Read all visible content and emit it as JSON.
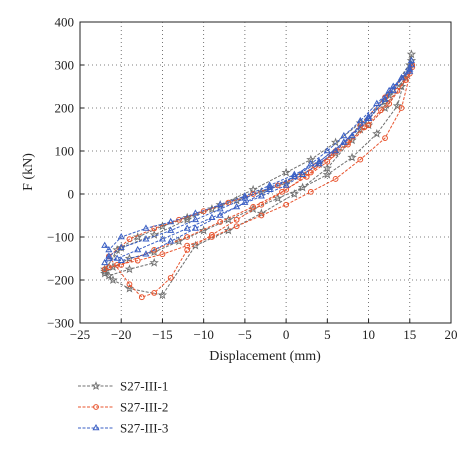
{
  "chart_data": {
    "type": "line",
    "title": "",
    "xlabel": "Displacement (mm)",
    "ylabel": "F (kN)",
    "xlim": [
      -25,
      20
    ],
    "ylim": [
      -300,
      400
    ],
    "xticks": [
      -25,
      -20,
      -15,
      -10,
      -5,
      0,
      5,
      10,
      15,
      20
    ],
    "yticks": [
      -300,
      -200,
      -100,
      0,
      100,
      200,
      300,
      400
    ],
    "grid": "dotted",
    "legend_position": "below plot, left",
    "series": [
      {
        "name": "S27-III-1",
        "color": "#707070",
        "marker": "star",
        "x": [
          -22,
          -21,
          -19,
          -16,
          -13,
          -10,
          -7,
          -4,
          -1,
          2,
          5,
          8,
          11,
          13.5,
          15.2,
          15,
          14,
          12,
          10,
          8,
          6,
          4,
          2,
          0,
          -3,
          -6,
          -9,
          -12,
          -15,
          -18,
          -20.5,
          -22,
          -21,
          -19,
          -15,
          -11,
          -7,
          -3,
          1,
          5,
          9,
          12.5,
          15.2,
          14.5,
          12,
          9,
          6,
          3,
          0,
          -4,
          -8,
          -12,
          -16,
          -20,
          -22,
          -21.5,
          -19,
          -16
        ],
        "y": [
          -185,
          -170,
          -150,
          -135,
          -110,
          -85,
          -60,
          -35,
          -10,
          15,
          45,
          85,
          140,
          205,
          325,
          300,
          250,
          200,
          160,
          125,
          95,
          70,
          45,
          25,
          5,
          -15,
          -35,
          -55,
          -75,
          -100,
          -130,
          -180,
          -200,
          -220,
          -235,
          -120,
          -85,
          -45,
          0,
          60,
          150,
          230,
          310,
          270,
          215,
          165,
          120,
          80,
          50,
          10,
          -25,
          -60,
          -95,
          -125,
          -175,
          -190,
          -175,
          -160
        ]
      },
      {
        "name": "S27-III-2",
        "color": "#e8542e",
        "marker": "circle",
        "x": [
          -22,
          -20.5,
          -18,
          -15,
          -12,
          -9,
          -6,
          -3,
          0,
          3,
          6,
          9,
          12,
          14,
          15.3,
          15,
          13.5,
          11.5,
          9.5,
          7.5,
          5.5,
          3.5,
          1.5,
          -1,
          -4,
          -7,
          -10,
          -13,
          -16,
          -19,
          -21.5,
          -19,
          -17.5,
          -16,
          -14,
          -12,
          -9,
          -6,
          -3,
          0,
          3,
          6,
          9,
          12,
          15.3,
          14.5,
          12.5,
          10,
          7.5,
          5,
          2.5,
          -0.5,
          -4,
          -8,
          -12,
          -16,
          -20,
          -21.5
        ],
        "y": [
          -175,
          -165,
          -155,
          -140,
          -120,
          -100,
          -75,
          -50,
          -25,
          5,
          35,
          80,
          130,
          200,
          300,
          280,
          240,
          195,
          155,
          120,
          90,
          65,
          40,
          20,
          0,
          -20,
          -40,
          -60,
          -80,
          -105,
          -145,
          -210,
          -240,
          -230,
          -195,
          -130,
          -95,
          -60,
          -25,
          10,
          50,
          100,
          160,
          225,
          295,
          265,
          210,
          160,
          115,
          75,
          40,
          5,
          -30,
          -65,
          -100,
          -130,
          -165,
          -170
        ]
      },
      {
        "name": "S27-III-3",
        "color": "#3a5fc4",
        "marker": "triangle",
        "x": [
          -22,
          -21.5,
          -20,
          -17,
          -14,
          -11,
          -8,
          -5,
          -2,
          1,
          4,
          7,
          10,
          12.5,
          15,
          15.2,
          14,
          12,
          10,
          8,
          6,
          4,
          2,
          0,
          -3,
          -6,
          -9,
          -12,
          -15,
          -18,
          -20.5,
          -22,
          -21.5,
          -20,
          -17,
          -14,
          -11,
          -8,
          -5,
          -2,
          1,
          4,
          7,
          10,
          13,
          15.2,
          15,
          13,
          11,
          9,
          7,
          5,
          3,
          1,
          -2,
          -5,
          -8,
          -11,
          -14,
          -17,
          -20,
          -21.5
        ],
        "y": [
          -120,
          -130,
          -100,
          -80,
          -65,
          -45,
          -25,
          -5,
          20,
          45,
          75,
          120,
          180,
          240,
          290,
          310,
          270,
          220,
          175,
          135,
          100,
          70,
          45,
          20,
          -5,
          -30,
          -55,
          -80,
          -105,
          -130,
          -150,
          -160,
          -145,
          -125,
          -105,
          -85,
          -60,
          -35,
          -10,
          15,
          40,
          75,
          120,
          175,
          240,
          300,
          285,
          250,
          210,
          170,
          135,
          100,
          70,
          40,
          10,
          -20,
          -50,
          -80,
          -110,
          -140,
          -155,
          -150
        ]
      }
    ]
  }
}
